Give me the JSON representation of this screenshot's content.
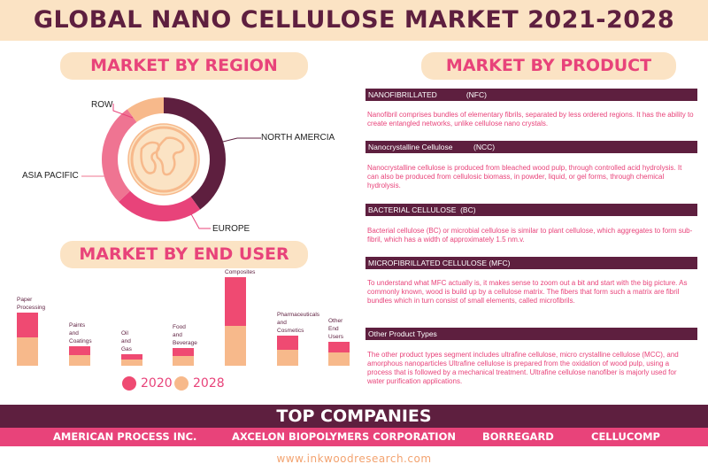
{
  "title": "GLOBAL NANO CELLULOSE MARKET 2021-2028",
  "sections": {
    "region": "MARKET BY REGION",
    "product": "MARKET BY PRODUCT",
    "end_user": "MARKET BY END  USER"
  },
  "colors": {
    "maroon": "#5e1f3f",
    "pink": "#e8437a",
    "salmon": "#ef7492",
    "peach": "#f7b98b",
    "cream": "#fbe3c4"
  },
  "icon": "globe-icon",
  "chart_data": [
    {
      "type": "pie",
      "categories": [
        "NORTH AMERCIA",
        "EUROPE",
        "ASIA PACIFIC",
        "ROW"
      ],
      "values": [
        40,
        23,
        27,
        10
      ],
      "colors": [
        "#5e1f3f",
        "#e8437a",
        "#ef7492",
        "#f7b98b"
      ]
    },
    {
      "type": "bar",
      "categories": [
        "Paper Processing",
        "Paints and Coatings",
        "Oil and Gas",
        "Food and Beverage",
        "Composites",
        "Pharmaceuticals and Cosmetics",
        "Other End Users"
      ],
      "category_lines": [
        [
          "Paper",
          "Processing"
        ],
        [
          "Paints",
          "and",
          "Coatings"
        ],
        [
          "Oil",
          "and",
          "Gas"
        ],
        [
          "Food",
          "and",
          "Beverage"
        ],
        [
          "Composites"
        ],
        [
          "Pharmaceuticals",
          "and",
          "Cosmetics"
        ],
        [
          "Other",
          "End",
          "Users"
        ]
      ],
      "series": [
        {
          "name": "2020",
          "values": [
            28,
            10,
            6,
            9,
            55,
            16,
            12
          ],
          "color": "#ef4a72"
        },
        {
          "name": "2028",
          "values": [
            32,
            12,
            7,
            11,
            45,
            18,
            15
          ],
          "color": "#f7b98b"
        }
      ],
      "stacked": true,
      "legend": "bottom"
    }
  ],
  "products": [
    {
      "heading": "NANOFIBRILLATED              (NFC)",
      "text": "Nanofibril comprises bundles of elementary fibrils, separated by less ordered regions. It has the ability to create entangled networks, unlike cellulose nano crystals."
    },
    {
      "heading": "Nanocrystalline Cellulose          (NCC)",
      "text": "Nanocrystalline cellulose is produced from bleached wood pulp, through controlled acid hydrolysis. It can also be produced from cellulosic biomass, in powder, liquid, or gel forms, through chemical hydrolysis."
    },
    {
      "heading": "BACTERIAL CELLULOSE  (BC)",
      "text": "Bacterial cellulose (BC) or microbial cellulose is similar to plant cellulose, which aggregates to form sub-fibril, which has a width of approximately 1.5 nm.v."
    },
    {
      "heading": "MICROFIBRILLATED CELLULOSE (MFC)",
      "text": "To understand what MFC actually is, it makes sense to zoom out a bit and start with the big picture. As commonly known, wood is build up by a cellulose matrix. The fibers that form such a matrix are fibril bundles which in turn consist of small elements, called microfibrils."
    },
    {
      "heading": "Other Product Types",
      "text": "The other product types segment includes ultrafine cellulose, micro crystalline cellulose (MCC), and amorphous nanoparticles Ultrafine cellulose is prepared from the oxidation of wood pulp, using a process that is followed by a mechanical treatment. Ultrafine cellulose nanofiber is majorly used for water purification applications."
    }
  ],
  "top_companies": {
    "title": "TOP COMPANIES",
    "names": [
      "AMERICAN PROCESS INC.",
      "AXCELON BIOPOLYMERS CORPORATION",
      "BORREGARD",
      "CELLUCOMP"
    ]
  },
  "footer": "www.inkwoodresearch.com"
}
